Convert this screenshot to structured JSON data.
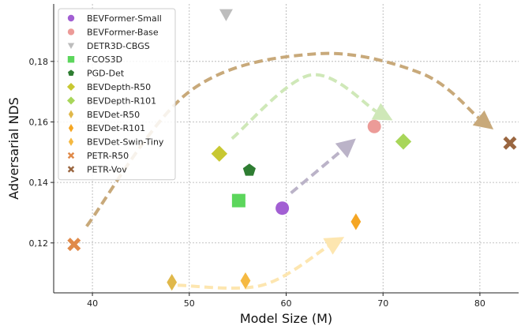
{
  "chart_data": {
    "type": "scatter",
    "xlabel": "Model Size (M)",
    "ylabel": "Adversarial NDS",
    "xlim": [
      36,
      84
    ],
    "ylim": [
      0.1035,
      0.199
    ],
    "xticks": [
      40,
      50,
      60,
      70,
      80
    ],
    "yticks": [
      0.12,
      0.14,
      0.16,
      0.18
    ],
    "xtick_labels": [
      "40",
      "50",
      "60",
      "70",
      "80"
    ],
    "ytick_labels": [
      "0,12",
      "0,14",
      "0,16",
      "0,18"
    ],
    "grid": true,
    "legend_position": "upper-left",
    "series": [
      {
        "name": "BEVFormer-Small",
        "marker": "circle",
        "color": "#a25fd3",
        "points": [
          {
            "x": 59.6,
            "y": 0.1315
          }
        ]
      },
      {
        "name": "BEVFormer-Base",
        "marker": "circle",
        "color": "#ec9b98",
        "points": [
          {
            "x": 69.1,
            "y": 0.1585
          }
        ]
      },
      {
        "name": "DETR3D-CBGS",
        "marker": "triangle-down",
        "color": "#bdbdbd",
        "points": [
          {
            "x": 53.8,
            "y": 0.1955
          }
        ]
      },
      {
        "name": "FCOS3D",
        "marker": "square",
        "color": "#5cd65c",
        "points": [
          {
            "x": 55.1,
            "y": 0.134
          }
        ]
      },
      {
        "name": "PGD-Det",
        "marker": "pentagon",
        "color": "#2e7d32",
        "points": [
          {
            "x": 56.2,
            "y": 0.144
          }
        ]
      },
      {
        "name": "BEVDepth-R50",
        "marker": "diamond",
        "color": "#c8c832",
        "points": [
          {
            "x": 53.1,
            "y": 0.1495
          }
        ]
      },
      {
        "name": "BEVDepth-R101",
        "marker": "diamond",
        "color": "#a8d65a",
        "points": [
          {
            "x": 72.1,
            "y": 0.1535
          }
        ]
      },
      {
        "name": "BEVDet-R50",
        "marker": "thin-diamond",
        "color": "#e0b84a",
        "points": [
          {
            "x": 48.2,
            "y": 0.107
          }
        ]
      },
      {
        "name": "BEVDet-R101",
        "marker": "thin-diamond",
        "color": "#f5a623",
        "points": [
          {
            "x": 67.2,
            "y": 0.127
          }
        ]
      },
      {
        "name": "BEVDet-Swin-Tiny",
        "marker": "thin-diamond",
        "color": "#f5b942",
        "points": [
          {
            "x": 55.8,
            "y": 0.1075
          }
        ]
      },
      {
        "name": "PETR-R50",
        "marker": "x",
        "color": "#e08a4a",
        "points": [
          {
            "x": 38.1,
            "y": 0.1195
          }
        ]
      },
      {
        "name": "PETR-Vov",
        "marker": "x",
        "color": "#9a6640",
        "points": [
          {
            "x": 83.1,
            "y": 0.153
          }
        ]
      }
    ],
    "trend_arrows": [
      {
        "color": "#c8a97a",
        "points": [
          {
            "x": 39.4,
            "y": 0.1255
          },
          {
            "x": 50,
            "y": 0.17
          },
          {
            "x": 63,
            "y": 0.1825
          },
          {
            "x": 74,
            "y": 0.176
          },
          {
            "x": 81.4,
            "y": 0.1575
          }
        ]
      },
      {
        "color": "#cfe8b8",
        "points": [
          {
            "x": 54.4,
            "y": 0.1545
          },
          {
            "x": 62.5,
            "y": 0.1755
          },
          {
            "x": 71,
            "y": 0.1605
          }
        ]
      },
      {
        "color": "#bbb3c8",
        "points": [
          {
            "x": 60.5,
            "y": 0.1365
          },
          {
            "x": 67.2,
            "y": 0.1545
          }
        ]
      },
      {
        "color": "#fde6b0",
        "points": [
          {
            "x": 48.8,
            "y": 0.106
          },
          {
            "x": 57.5,
            "y": 0.106
          },
          {
            "x": 66.0,
            "y": 0.122
          }
        ]
      }
    ]
  }
}
